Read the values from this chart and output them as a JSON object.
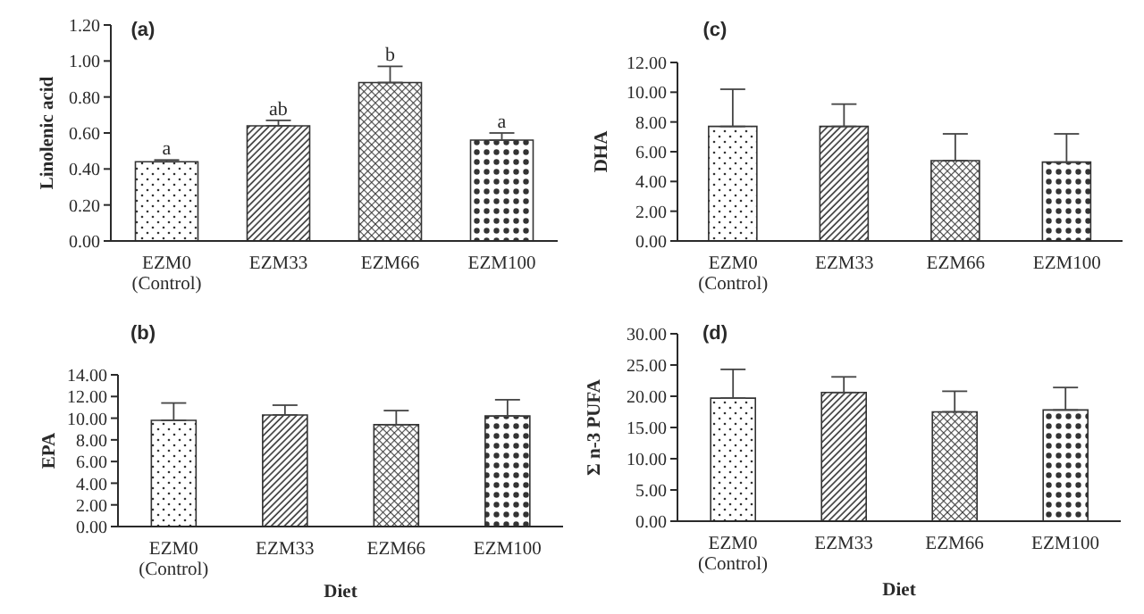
{
  "chart_data": [
    {
      "type": "bar",
      "title": "(a)",
      "ylabel": "Linolenic acid",
      "categories": [
        "EZM0 (Control)",
        "EZM33",
        "EZM66",
        "EZM100"
      ],
      "values": [
        0.44,
        0.64,
        0.88,
        0.56
      ],
      "errors": [
        [
          0.44,
          0.45
        ],
        [
          0.64,
          0.67
        ],
        [
          0.88,
          0.97
        ],
        [
          0.56,
          0.6
        ]
      ],
      "color": "#333333",
      "ylim": [
        0,
        1.2
      ],
      "yticks": [
        {
          "value": 0,
          "label": "0.00"
        },
        {
          "value": 0.2,
          "label": "0.20"
        },
        {
          "value": 0.4,
          "label": "0.40"
        },
        {
          "value": 0.6,
          "label": "0.60"
        },
        {
          "value": 0.8,
          "label": "0.80"
        },
        {
          "value": 1,
          "label": "1.00"
        },
        {
          "value": 1.2,
          "label": "1.20"
        }
      ],
      "annotations": [
        {
          "text": "a",
          "x": "EZM0 (Control)",
          "y": 0.45
        },
        {
          "text": "ab",
          "x": "EZM33",
          "y": 0.67
        },
        {
          "text": "b",
          "x": "EZM66",
          "y": 0.97
        },
        {
          "text": "a",
          "x": "EZM100",
          "y": 0.6
        }
      ]
    },
    {
      "type": "bar",
      "title": "(c)",
      "ylabel": "DHA",
      "categories": [
        "EZM0 (Control)",
        "EZM33",
        "EZM66",
        "EZM100"
      ],
      "values": [
        7.7,
        7.7,
        5.4,
        5.3
      ],
      "errors": [
        [
          7.7,
          10.2
        ],
        [
          7.7,
          9.2
        ],
        [
          5.4,
          7.2
        ],
        [
          5.3,
          7.2
        ]
      ],
      "color": "#333333",
      "ylim": [
        0,
        12
      ],
      "yticks": [
        {
          "value": 0,
          "label": "0.00"
        },
        {
          "value": 2,
          "label": "2.00"
        },
        {
          "value": 4,
          "label": "4.00"
        },
        {
          "value": 6,
          "label": "6.00"
        },
        {
          "value": 8,
          "label": "8.00"
        },
        {
          "value": 10,
          "label": "10.00"
        },
        {
          "value": 12,
          "label": "12.00"
        }
      ]
    },
    {
      "type": "bar",
      "title": "(b)",
      "ylabel": "EPA",
      "xlabel": "Diet",
      "categories": [
        "EZM0 (Control)",
        "EZM33",
        "EZM66",
        "EZM100"
      ],
      "values": [
        9.8,
        10.3,
        9.4,
        10.2
      ],
      "errors": [
        [
          9.8,
          11.4
        ],
        [
          10.3,
          11.2
        ],
        [
          9.4,
          10.7
        ],
        [
          10.2,
          11.7
        ]
      ],
      "color": "#333333",
      "ylim": [
        0,
        14
      ],
      "yticks": [
        {
          "value": 0,
          "label": "0.00"
        },
        {
          "value": 2,
          "label": "2.00"
        },
        {
          "value": 4,
          "label": "4.00"
        },
        {
          "value": 6,
          "label": "6.00"
        },
        {
          "value": 8,
          "label": "8.00"
        },
        {
          "value": 10,
          "label": "10.00"
        },
        {
          "value": 12,
          "label": "12.00"
        },
        {
          "value": 14,
          "label": "14.00"
        }
      ]
    },
    {
      "type": "bar",
      "title": "(d)",
      "ylabel": "Σ n-3 PUFA",
      "xlabel": "Diet",
      "categories": [
        "EZM0 (Control)",
        "EZM33",
        "EZM66",
        "EZM100"
      ],
      "values": [
        19.7,
        20.6,
        17.5,
        17.8
      ],
      "errors": [
        [
          19.7,
          24.3
        ],
        [
          20.6,
          23.1
        ],
        [
          17.5,
          20.8
        ],
        [
          17.8,
          21.4
        ]
      ],
      "color": "#333333",
      "ylim": [
        0,
        30
      ],
      "yticks": [
        {
          "value": 0,
          "label": "0.00"
        },
        {
          "value": 5,
          "label": "5.00"
        },
        {
          "value": 10,
          "label": "10.00"
        },
        {
          "value": 15,
          "label": "15.00"
        },
        {
          "value": 20,
          "label": "20.00"
        },
        {
          "value": 25,
          "label": "25.00"
        },
        {
          "value": 30,
          "label": "30.00"
        }
      ]
    }
  ]
}
